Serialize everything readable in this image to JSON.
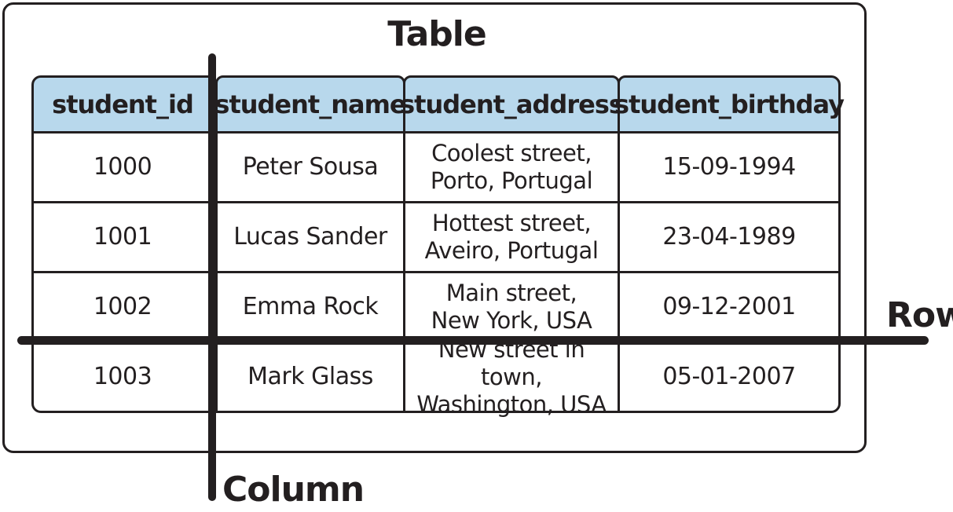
{
  "labels": {
    "table": "Table",
    "row": "Row",
    "column": "Column"
  },
  "table": {
    "headers": [
      "student_id",
      "student_name",
      "student_address",
      "student_birthday"
    ],
    "rows": [
      {
        "id": "1000",
        "name": "Peter Sousa",
        "address": "Coolest street,\nPorto, Portugal",
        "birthday": "15-09-1994"
      },
      {
        "id": "1001",
        "name": "Lucas Sander",
        "address": "Hottest street,\nAveiro, Portugal",
        "birthday": "23-04-1989"
      },
      {
        "id": "1002",
        "name": "Emma Rock",
        "address": "Main street,\nNew York, USA",
        "birthday": "09-12-2001"
      },
      {
        "id": "1003",
        "name": "Mark Glass",
        "address": "New street in town,\nWashington, USA",
        "birthday": "05-01-2007"
      }
    ]
  },
  "colors": {
    "header_fill": "#b8d8ec",
    "ink": "#231f20"
  }
}
